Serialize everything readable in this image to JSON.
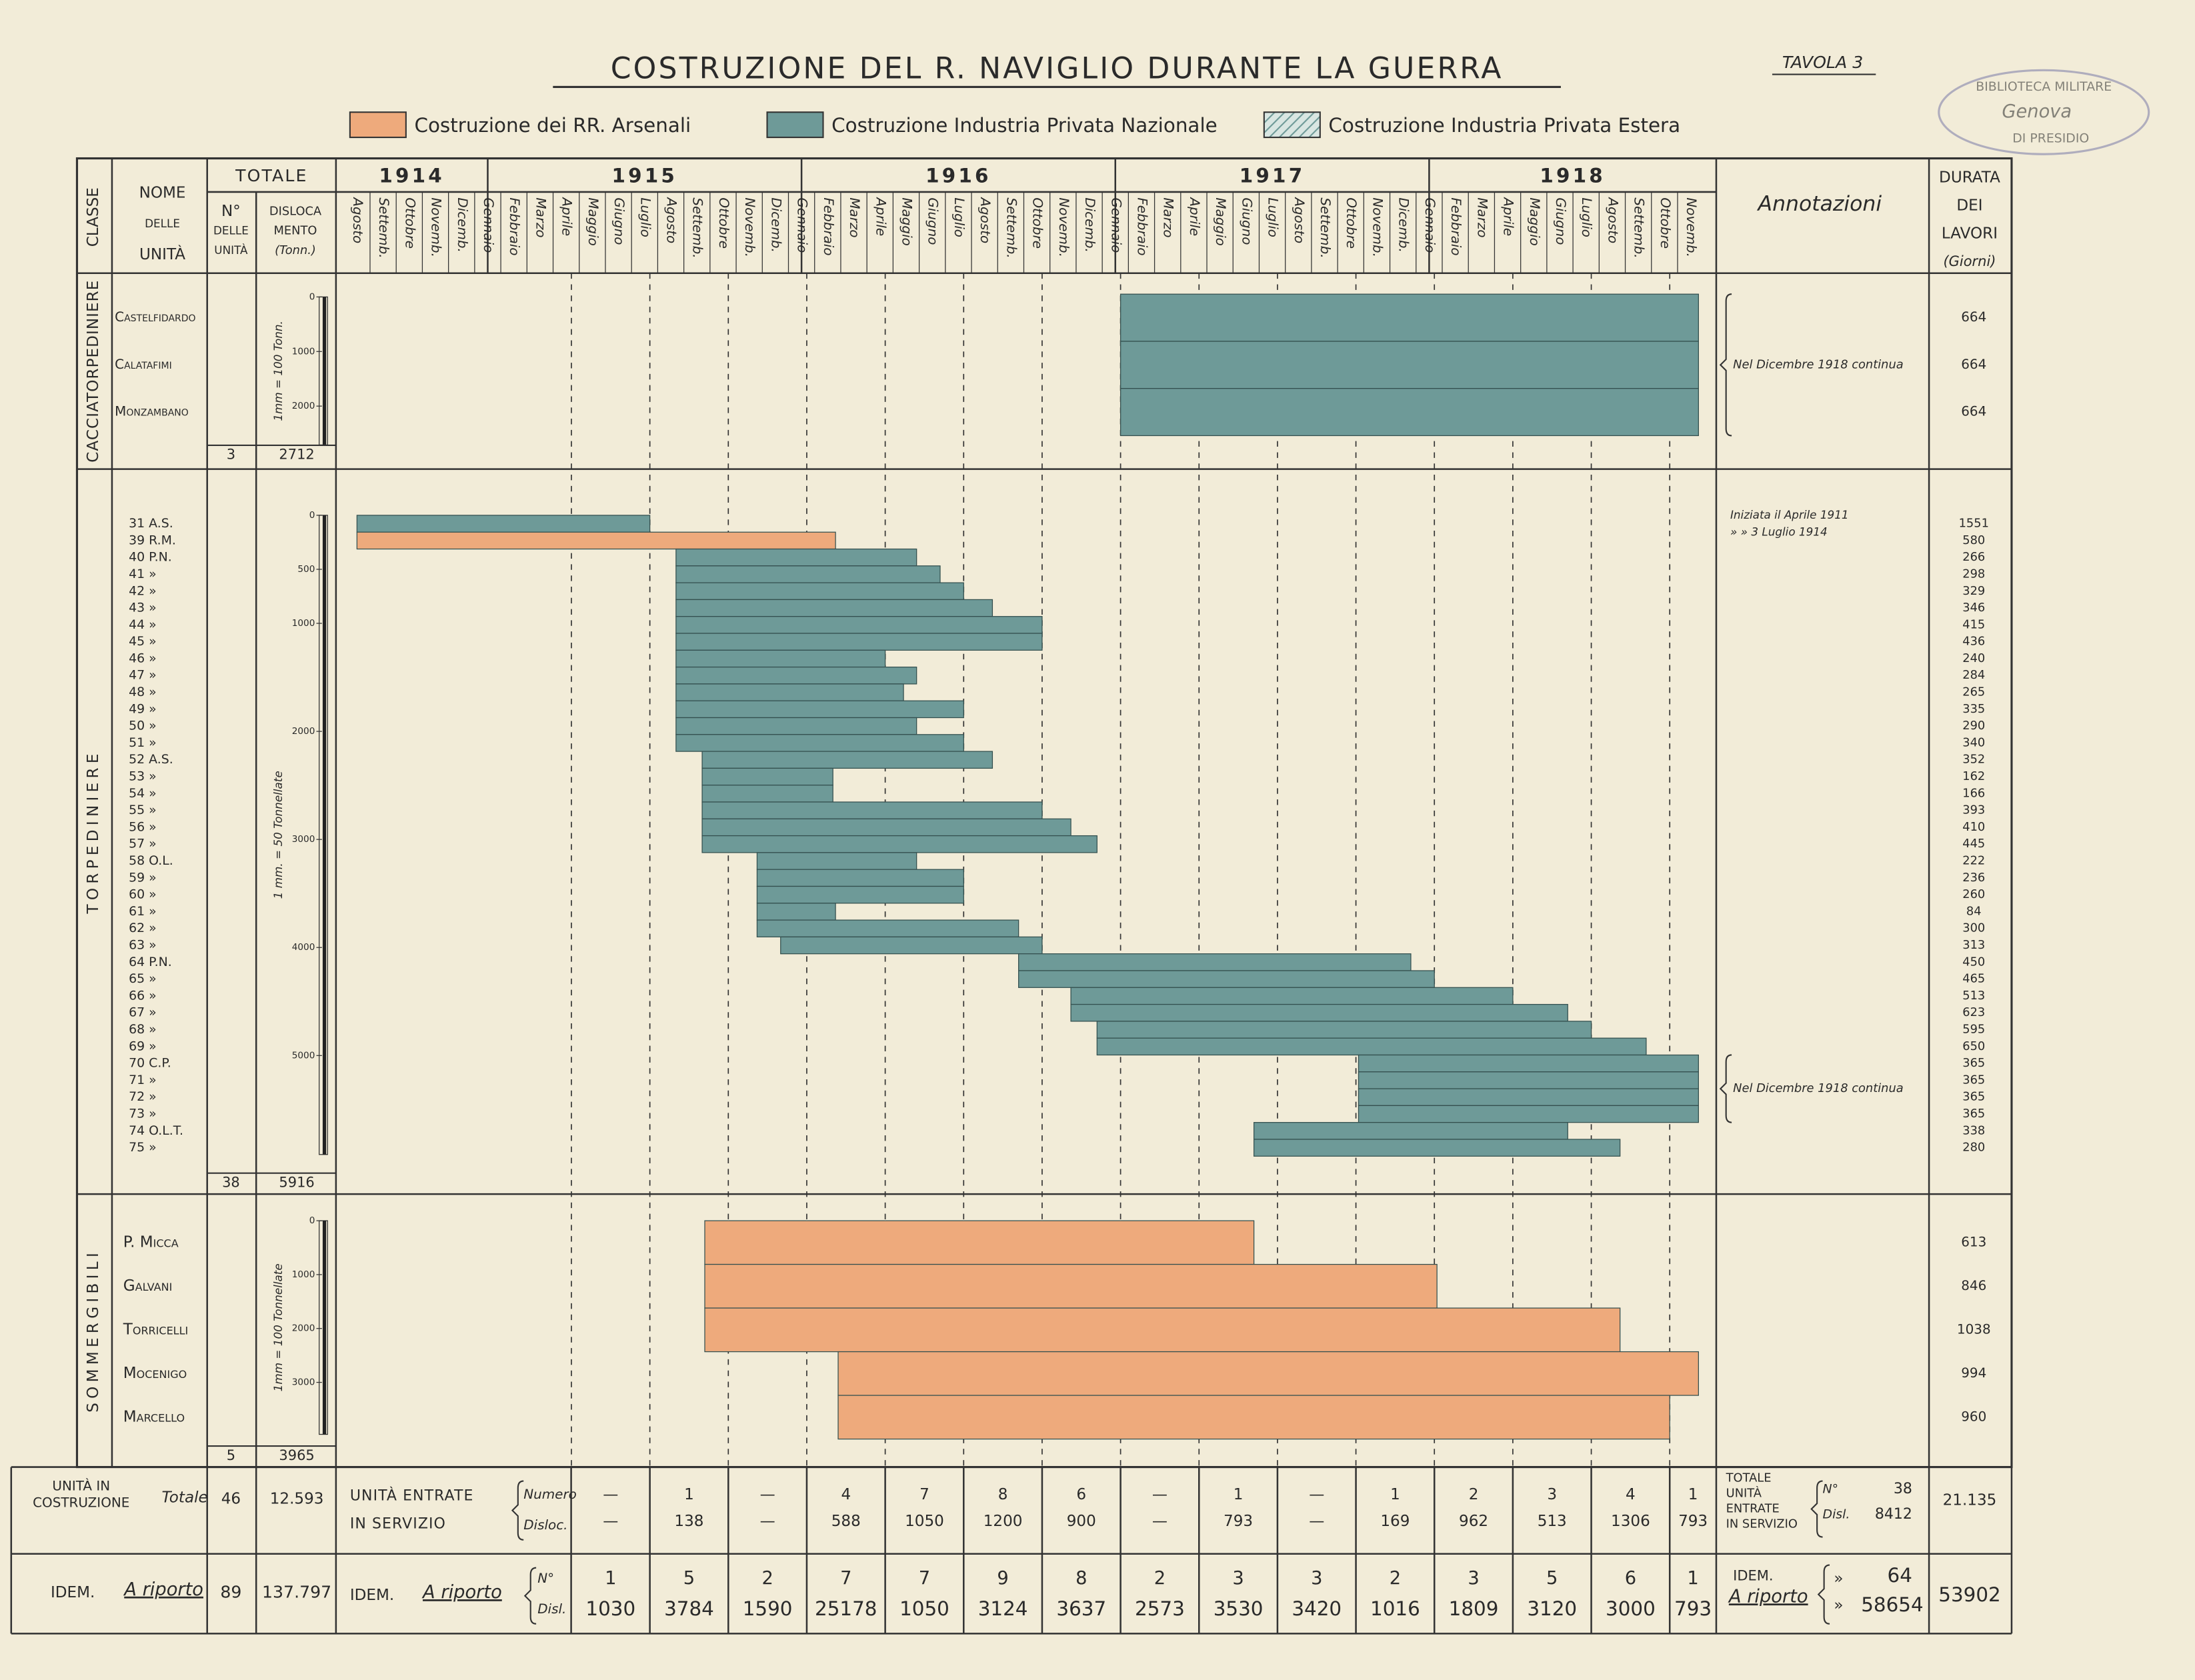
{
  "plate": "TAVOLA 3",
  "stamp": [
    "BIBLIOTECA MILITARE",
    "Genova",
    "DI PRESIDIO"
  ],
  "table_header": {
    "classe": "CLASSE",
    "nome": [
      "NOME",
      "DELLE",
      "UNITÀ"
    ],
    "totale": "TOTALE",
    "numero": [
      "N°",
      "DELLE",
      "UNITÀ"
    ],
    "dislocamento": [
      "DISLOCA",
      "MENTO",
      "(Tonn.)"
    ],
    "annotazioni": "Annotazioni",
    "durata": [
      "DURATA",
      "DEI",
      "LAVORI",
      "(Giorni)"
    ]
  },
  "chart_data": {
    "type": "gantt",
    "title": "COSTRUZIONE DEL R. NAVIGLIO DURANTE LA GUERRA",
    "legend": [
      {
        "name": "Costruzione dei RR. Arsenali",
        "color": "#eeaa7c"
      },
      {
        "name": "Costruzione Industria Privata Nazionale",
        "color": "#6e9a98"
      },
      {
        "name": "Costruzione Industria Privata Estera",
        "color": "#b9d3cf",
        "pattern": "hatch"
      }
    ],
    "years": [
      1914,
      1915,
      1916,
      1917,
      1918
    ],
    "months": [
      "Agosto",
      "Settemb.",
      "Ottobre",
      "Novemb.",
      "Dicemb.",
      "Gennaio",
      "Febbraio",
      "Marzo",
      "Aprile",
      "Maggio",
      "Giugno",
      "Luglio",
      "Agosto",
      "Settemb.",
      "Ottobre",
      "Novemb.",
      "Dicemb.",
      "Gennaio",
      "Febbraio",
      "Marzo",
      "Aprile",
      "Maggio",
      "Giugno",
      "Luglio",
      "Agosto",
      "Settemb.",
      "Ottobre",
      "Novemb.",
      "Dicemb.",
      "Gennaio",
      "Febbraio",
      "Marzo",
      "Aprile",
      "Maggio",
      "Giugno",
      "Luglio",
      "Agosto",
      "Settemb.",
      "Ottobre",
      "Novemb.",
      "Dicemb.",
      "Gennaio",
      "Febbraio",
      "Marzo",
      "Aprile",
      "Maggio",
      "Giugno",
      "Luglio",
      "Agosto",
      "Settemb.",
      "Ottobre",
      "Novemb."
    ],
    "xlim": [
      0,
      52
    ],
    "groups": [
      {
        "name": "CACCIATORPEDINIERE",
        "count": 3,
        "displacement": 2712,
        "color": "#6e9a98",
        "scale": {
          "label": "1mm = 100 Tonn.",
          "ticks": [
            0,
            1000,
            2000
          ]
        },
        "notes": [
          {
            "text": "Nel Dicembre 1918 continua",
            "units": [
              0,
              2
            ]
          }
        ],
        "units": [
          {
            "name": "Castelfidardo",
            "start": 29.2,
            "end": 51.3,
            "days": 664
          },
          {
            "name": "Calatafimi",
            "start": 29.2,
            "end": 51.3,
            "days": 664
          },
          {
            "name": "Monzambano",
            "start": 29.2,
            "end": 51.3,
            "days": 664
          }
        ]
      },
      {
        "name": "TORPEDINIERE",
        "count": 38,
        "displacement": 5916,
        "color": "#6e9a98",
        "scale": {
          "label": "1 mm. = 50 Tonnellate",
          "ticks": [
            0,
            500,
            1000,
            2000,
            3000,
            4000,
            5000
          ]
        },
        "notes": [
          {
            "text": "Nel Dicembre 1918 continua",
            "units": [
              32,
              35
            ]
          }
        ],
        "units": [
          {
            "name": "31 A.S.",
            "start": 0,
            "end": 11.2,
            "days": 1551,
            "note": "Iniziata il Aprile 1911"
          },
          {
            "name": "39 R.M.",
            "start": 0,
            "end": 18.3,
            "days": 580,
            "color": "#eeaa7c",
            "note": "» » 3 Luglio 1914"
          },
          {
            "name": "40 P.N.",
            "start": 12.2,
            "end": 21.4,
            "days": 266
          },
          {
            "name": "41 »",
            "start": 12.2,
            "end": 22.3,
            "days": 298
          },
          {
            "name": "42 »",
            "start": 12.2,
            "end": 23.2,
            "days": 329
          },
          {
            "name": "43 »",
            "start": 12.2,
            "end": 24.3,
            "days": 346
          },
          {
            "name": "44 »",
            "start": 12.2,
            "end": 26.2,
            "days": 415
          },
          {
            "name": "45 »",
            "start": 12.2,
            "end": 26.2,
            "days": 436
          },
          {
            "name": "46 »",
            "start": 12.2,
            "end": 20.2,
            "days": 240
          },
          {
            "name": "47 »",
            "start": 12.2,
            "end": 21.4,
            "days": 284
          },
          {
            "name": "48 »",
            "start": 12.2,
            "end": 20.9,
            "days": 265
          },
          {
            "name": "49 »",
            "start": 12.2,
            "end": 23.2,
            "days": 335
          },
          {
            "name": "50 »",
            "start": 12.2,
            "end": 21.4,
            "days": 290
          },
          {
            "name": "51 »",
            "start": 12.2,
            "end": 23.2,
            "days": 340
          },
          {
            "name": "52 A.S.",
            "start": 13.2,
            "end": 24.3,
            "days": 352
          },
          {
            "name": "53 »",
            "start": 13.2,
            "end": 18.2,
            "days": 162
          },
          {
            "name": "54 »",
            "start": 13.2,
            "end": 18.2,
            "days": 166
          },
          {
            "name": "55 »",
            "start": 13.2,
            "end": 26.2,
            "days": 393
          },
          {
            "name": "56 »",
            "start": 13.2,
            "end": 27.3,
            "days": 410
          },
          {
            "name": "57 »",
            "start": 13.2,
            "end": 28.3,
            "days": 445
          },
          {
            "name": "58 O.L.",
            "start": 15.3,
            "end": 21.4,
            "days": 222
          },
          {
            "name": "59 »",
            "start": 15.3,
            "end": 23.2,
            "days": 236
          },
          {
            "name": "60 »",
            "start": 15.3,
            "end": 23.2,
            "days": 260
          },
          {
            "name": "61 »",
            "start": 15.3,
            "end": 18.3,
            "days": 84
          },
          {
            "name": "62 »",
            "start": 15.3,
            "end": 25.3,
            "days": 300
          },
          {
            "name": "63 »",
            "start": 16.2,
            "end": 26.2,
            "days": 313
          },
          {
            "name": "64 P.N.",
            "start": 25.3,
            "end": 40.3,
            "days": 450
          },
          {
            "name": "65 »",
            "start": 25.3,
            "end": 41.2,
            "days": 465
          },
          {
            "name": "66 »",
            "start": 27.3,
            "end": 44.2,
            "days": 513
          },
          {
            "name": "67 »",
            "start": 27.3,
            "end": 46.3,
            "days": 623
          },
          {
            "name": "68 »",
            "start": 28.3,
            "end": 47.2,
            "days": 595
          },
          {
            "name": "69 »",
            "start": 28.3,
            "end": 49.3,
            "days": 650
          },
          {
            "name": "70 C.P.",
            "start": 38.3,
            "end": 51.3,
            "days": 365
          },
          {
            "name": "71 »",
            "start": 38.3,
            "end": 51.3,
            "days": 365
          },
          {
            "name": "72 »",
            "start": 38.3,
            "end": 51.3,
            "days": 365
          },
          {
            "name": "73 »",
            "start": 38.3,
            "end": 51.3,
            "days": 365
          },
          {
            "name": "74 O.L.T.",
            "start": 34.3,
            "end": 46.3,
            "days": 338
          },
          {
            "name": "75 »",
            "start": 34.3,
            "end": 48.3,
            "days": 280
          }
        ]
      },
      {
        "name": "SOMMERGIBILI",
        "count": 5,
        "displacement": 3965,
        "color": "#eeaa7c",
        "scale": {
          "label": "1mm = 100 Tonnellate",
          "ticks": [
            0,
            1000,
            2000,
            3000
          ]
        },
        "notes": [],
        "units": [
          {
            "name": "P. Micca",
            "start": 13.3,
            "end": 34.3,
            "days": 613
          },
          {
            "name": "Galvani",
            "start": 13.3,
            "end": 41.3,
            "days": 846
          },
          {
            "name": "Torricelli",
            "start": 13.3,
            "end": 48.3,
            "days": 1038
          },
          {
            "name": "Mocenigo",
            "start": 18.4,
            "end": 51.3,
            "days": 994
          },
          {
            "name": "Marcello",
            "start": 18.4,
            "end": 50.2,
            "days": 960
          }
        ]
      }
    ]
  },
  "footer": {
    "in_service": {
      "label": [
        "UNITÀ IN",
        "COSTRUZIONE"
      ],
      "sublabel": "Totale",
      "count": 46,
      "displacement": "12.593",
      "row_label": [
        "UNITÀ ENTRATE",
        "IN SERVIZIO"
      ],
      "number_label": "Numero",
      "disp_label": "Disloc.",
      "numbers": [
        "—",
        1,
        "—",
        4,
        7,
        8,
        6,
        "—",
        1,
        "—",
        1,
        2,
        3,
        4,
        1
      ],
      "displacements": [
        "—",
        138,
        "—",
        588,
        1050,
        1200,
        900,
        "—",
        793,
        "—",
        169,
        962,
        513,
        1306,
        793
      ],
      "total_label": [
        "TOTALE",
        "UNITÀ",
        "ENTRATE",
        "IN SERVIZIO"
      ],
      "total_number_label": "N°",
      "total_number": 38,
      "total_disp_label": "Disl.",
      "total_disp": 8412,
      "days_total": "21.135"
    },
    "carried": {
      "label": "IDEM.",
      "sublabel": "A riporto",
      "count": 89,
      "displacement": "137.797",
      "row_label": "IDEM.",
      "row_sublabel": "A riporto",
      "number_label": "N°",
      "disp_label": "Disl.",
      "numbers": [
        1,
        5,
        2,
        7,
        7,
        9,
        8,
        2,
        3,
        3,
        2,
        3,
        5,
        6,
        1
      ],
      "displacements": [
        1030,
        3784,
        1590,
        25178,
        1050,
        3124,
        3637,
        2573,
        3530,
        3420,
        1016,
        1809,
        3120,
        3000,
        793
      ],
      "total_label": "IDEM.",
      "total_sublabel": "A riporto",
      "ditto": "»",
      "total_number": 64,
      "total_disp": 58654,
      "days_total": 53902
    }
  }
}
